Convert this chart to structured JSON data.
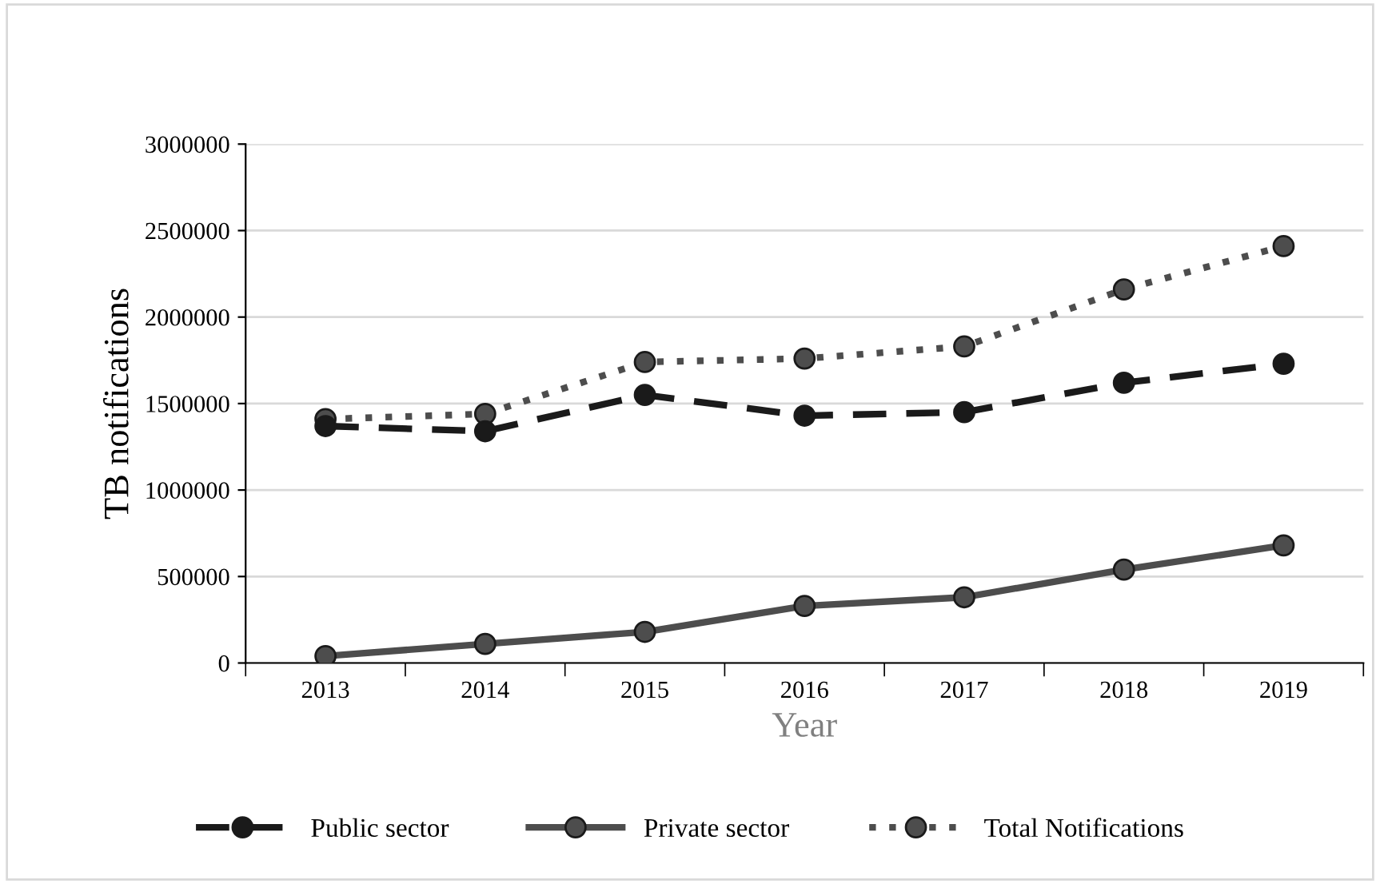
{
  "chart_data": {
    "type": "line",
    "xlabel": "Year",
    "ylabel": "TB notifications",
    "categories": [
      "2013",
      "2014",
      "2015",
      "2016",
      "2017",
      "2018",
      "2019"
    ],
    "series": [
      {
        "name": "Public sector",
        "color": "#1a1a1a",
        "line_style": "dashed",
        "values": [
          1370000,
          1340000,
          1550000,
          1430000,
          1450000,
          1620000,
          1730000
        ]
      },
      {
        "name": "Private sector",
        "color": "#4d4d4d",
        "line_style": "solid",
        "values": [
          40000,
          110000,
          180000,
          330000,
          380000,
          540000,
          680000
        ]
      },
      {
        "name": "Total Notifications",
        "color": "#4d4d4d",
        "line_style": "dotted",
        "values": [
          1410000,
          1440000,
          1740000,
          1760000,
          1830000,
          2160000,
          2410000
        ]
      }
    ],
    "ylim": [
      0,
      3000000
    ],
    "yticks": [
      0,
      500000,
      1000000,
      1500000,
      2000000,
      2500000,
      3000000
    ],
    "grid": "y",
    "legend": "bottom",
    "marker": "circle"
  }
}
